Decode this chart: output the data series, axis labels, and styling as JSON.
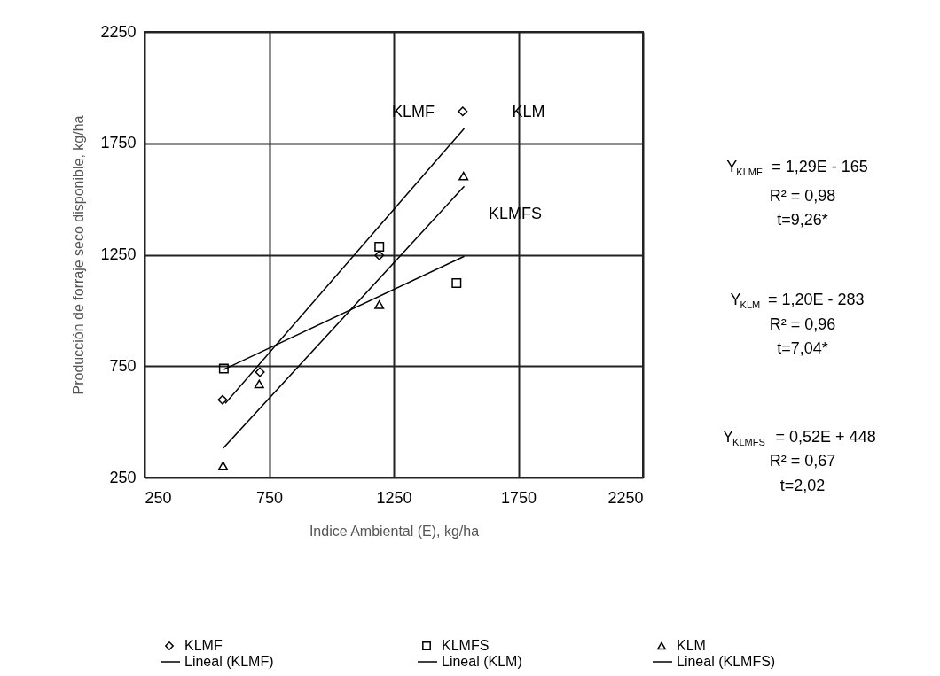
{
  "chart_data": {
    "type": "scatter",
    "xlabel": "Indice Ambiental (E), kg/ha",
    "ylabel": "Producción de forraje seco disponible, kg/ha",
    "xlim": [
      250,
      2250
    ],
    "xticks": [
      250,
      750,
      1250,
      1750,
      2250
    ],
    "ylim": [
      250,
      2250
    ],
    "yticks": [
      250,
      750,
      1250,
      1750,
      2250
    ],
    "grid": true,
    "legend": "bottom",
    "series": [
      {
        "name": "KLMF",
        "marker": "diamond",
        "color": "#000000",
        "x": [
          563,
          713,
          1192,
          1527
        ],
        "values": [
          599,
          723,
          1247,
          1893
        ]
      },
      {
        "name": "Lineal (KLMF)",
        "type": "line",
        "color": "#000000",
        "x": [
          574,
          1533
        ],
        "values": [
          583,
          1817
        ]
      },
      {
        "name": "KLMFS",
        "marker": "square",
        "color": "#000000",
        "x": [
          568,
          1192,
          1502
        ],
        "values": [
          739,
          1286,
          1123
        ]
      },
      {
        "name": "Lineal (KLM)",
        "type": "line",
        "color": "#000000",
        "x": [
          565,
          1533
        ],
        "values": [
          381,
          1557
        ]
      },
      {
        "name": "KLM",
        "marker": "triangle",
        "color": "#000000",
        "x": [
          565,
          710,
          1192,
          1530
        ],
        "values": [
          303,
          670,
          1026,
          1603
        ]
      },
      {
        "name": "Lineal (KLMFS)",
        "type": "line",
        "color": "#000000",
        "x": [
          568,
          1533
        ],
        "values": [
          735,
          1243
        ]
      }
    ],
    "annotations": [
      "KLMF",
      "KLM",
      "KLMFS",
      "Y$_{KLMF}$ = 1,29E - 165",
      "R² = 0,98",
      "t=9,26*",
      "Y$_{KLM}$ = 1,20E - 283",
      "R² = 0,96",
      "t=7,04*",
      "Y$_{KLMFS}$ = 0,52E + 448",
      "R² = 0,67",
      "t=2,02"
    ]
  }
}
